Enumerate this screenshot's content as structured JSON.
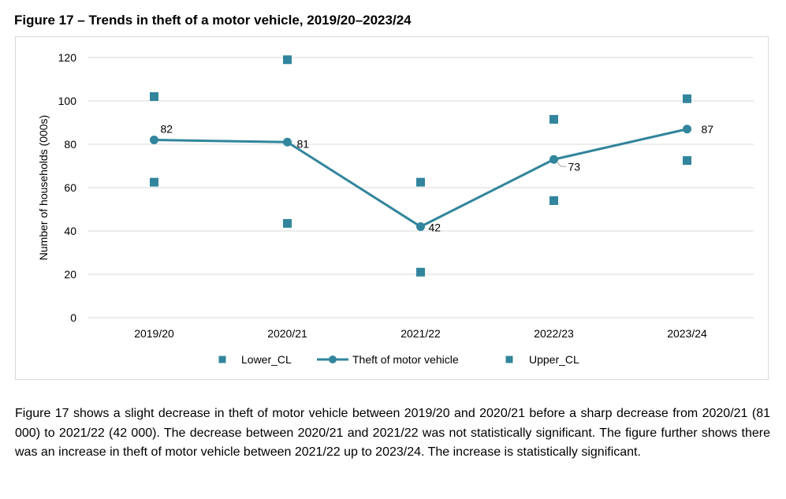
{
  "figure": {
    "title": "Figure 17 – Trends in theft of a motor vehicle, 2019/20–2023/24"
  },
  "chart_data": {
    "type": "line",
    "categories": [
      "2019/20",
      "2020/21",
      "2021/22",
      "2022/23",
      "2023/24"
    ],
    "series": [
      {
        "name": "Lower_CL",
        "style": "markers-square",
        "color": "#31859c",
        "values": [
          62.5,
          43.5,
          21,
          54,
          72.5
        ]
      },
      {
        "name": "Theft of motor vehicle",
        "style": "line-circle",
        "color": "#31859c",
        "values": [
          82,
          81,
          42,
          73,
          87
        ],
        "data_labels": [
          "82",
          "81",
          "42",
          "73",
          "87"
        ]
      },
      {
        "name": "Upper_CL",
        "style": "markers-square",
        "color": "#31859c",
        "values": [
          102,
          119,
          62.5,
          91.5,
          101
        ]
      }
    ],
    "title": "",
    "xlabel": "",
    "ylabel": "Number of households (000s)",
    "ylim": [
      0,
      120
    ],
    "yticks": [
      "0",
      "20",
      "40",
      "60",
      "80",
      "100",
      "120"
    ],
    "grid": "horizontal",
    "legend": [
      "Lower_CL",
      "Theft of motor vehicle",
      "Upper_CL"
    ],
    "legend_position": "bottom"
  },
  "body": {
    "paragraph": "Figure 17 shows a slight decrease in theft of motor vehicle between 2019/20 and 2020/21 before a sharp decrease from 2020/21 (81 000) to 2021/22 (42 000). The decrease between 2020/21 and 2021/22 was not statistically significant. The figure further shows there was an increase in theft of motor vehicle between 2021/22 up to 2023/24. The increase is statistically significant."
  }
}
